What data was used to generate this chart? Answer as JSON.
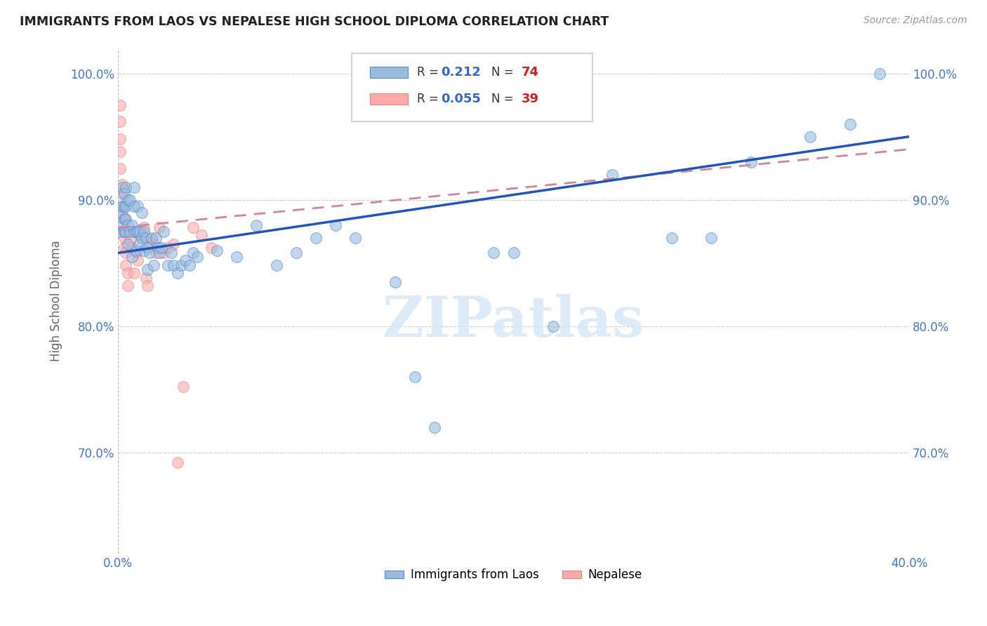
{
  "title": "IMMIGRANTS FROM LAOS VS NEPALESE HIGH SCHOOL DIPLOMA CORRELATION CHART",
  "source": "Source: ZipAtlas.com",
  "ylabel": "High School Diploma",
  "xlim": [
    0.0,
    0.4
  ],
  "ylim": [
    0.62,
    1.02
  ],
  "xtick_positions": [
    0.0,
    0.05,
    0.1,
    0.15,
    0.2,
    0.25,
    0.3,
    0.35,
    0.4
  ],
  "xtick_labels": [
    "0.0%",
    "",
    "",
    "",
    "",
    "",
    "",
    "",
    "40.0%"
  ],
  "ytick_positions": [
    0.7,
    0.8,
    0.9,
    1.0
  ],
  "ytick_labels": [
    "70.0%",
    "80.0%",
    "90.0%",
    "100.0%"
  ],
  "legend_label_blue": "Immigrants from Laos",
  "legend_label_pink": "Nepalese",
  "watermark": "ZIPatlas",
  "blue_dot_color": "#99BBDD",
  "blue_edge_color": "#5588CC",
  "pink_dot_color": "#FFAAAA",
  "pink_edge_color": "#DD8888",
  "blue_line_color": "#2255BB",
  "pink_line_color": "#CC8899",
  "background_color": "#ffffff",
  "blue_x": [
    0.001,
    0.001,
    0.002,
    0.002,
    0.002,
    0.003,
    0.003,
    0.003,
    0.003,
    0.004,
    0.004,
    0.004,
    0.004,
    0.005,
    0.005,
    0.005,
    0.006,
    0.006,
    0.007,
    0.007,
    0.008,
    0.008,
    0.008,
    0.009,
    0.009,
    0.01,
    0.01,
    0.011,
    0.011,
    0.012,
    0.012,
    0.013,
    0.013,
    0.014,
    0.015,
    0.015,
    0.016,
    0.017,
    0.018,
    0.019,
    0.02,
    0.021,
    0.022,
    0.023,
    0.025,
    0.027,
    0.028,
    0.03,
    0.032,
    0.034,
    0.036,
    0.038,
    0.04,
    0.05,
    0.06,
    0.07,
    0.08,
    0.09,
    0.1,
    0.11,
    0.12,
    0.14,
    0.15,
    0.16,
    0.19,
    0.2,
    0.22,
    0.25,
    0.28,
    0.3,
    0.32,
    0.35,
    0.37,
    0.385
  ],
  "blue_y": [
    0.875,
    0.89,
    0.88,
    0.895,
    0.91,
    0.875,
    0.885,
    0.895,
    0.905,
    0.875,
    0.885,
    0.895,
    0.91,
    0.865,
    0.88,
    0.9,
    0.875,
    0.9,
    0.855,
    0.88,
    0.875,
    0.895,
    0.91,
    0.86,
    0.875,
    0.875,
    0.895,
    0.865,
    0.875,
    0.87,
    0.89,
    0.86,
    0.875,
    0.87,
    0.845,
    0.862,
    0.858,
    0.87,
    0.848,
    0.87,
    0.862,
    0.858,
    0.862,
    0.875,
    0.848,
    0.858,
    0.848,
    0.842,
    0.848,
    0.852,
    0.848,
    0.858,
    0.855,
    0.86,
    0.855,
    0.88,
    0.848,
    0.858,
    0.87,
    0.88,
    0.87,
    0.835,
    0.76,
    0.72,
    0.858,
    0.858,
    0.8,
    0.92,
    0.87,
    0.87,
    0.93,
    0.95,
    0.96,
    1.0
  ],
  "pink_x": [
    0.001,
    0.001,
    0.001,
    0.001,
    0.001,
    0.002,
    0.002,
    0.002,
    0.002,
    0.003,
    0.003,
    0.003,
    0.003,
    0.004,
    0.004,
    0.005,
    0.005,
    0.006,
    0.007,
    0.008,
    0.009,
    0.01,
    0.011,
    0.012,
    0.013,
    0.014,
    0.015,
    0.016,
    0.017,
    0.019,
    0.021,
    0.023,
    0.025,
    0.028,
    0.03,
    0.033,
    0.038,
    0.042,
    0.047
  ],
  "pink_y": [
    0.975,
    0.962,
    0.948,
    0.938,
    0.925,
    0.912,
    0.905,
    0.895,
    0.888,
    0.885,
    0.875,
    0.87,
    0.862,
    0.858,
    0.848,
    0.842,
    0.832,
    0.868,
    0.862,
    0.842,
    0.858,
    0.852,
    0.872,
    0.872,
    0.878,
    0.838,
    0.832,
    0.865,
    0.868,
    0.858,
    0.878,
    0.858,
    0.862,
    0.865,
    0.692,
    0.752,
    0.878,
    0.872,
    0.862
  ],
  "blue_trendline_x": [
    0.0,
    0.4
  ],
  "blue_trendline_y": [
    0.858,
    0.95
  ],
  "pink_trendline_x": [
    0.0,
    0.4
  ],
  "pink_trendline_y": [
    0.878,
    0.94
  ]
}
